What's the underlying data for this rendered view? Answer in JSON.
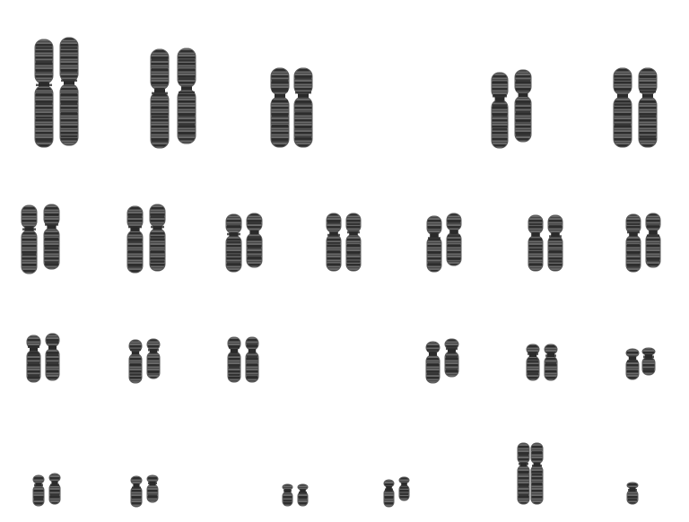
{
  "image": {
    "background": "#ffffff",
    "chromatin_dark": "#2a2a2a",
    "chromatin_mid": "#5a5a5a",
    "chromatin_light": "#9a9a9a"
  },
  "karyotype": {
    "rows": [
      {
        "row": 1,
        "pairs": 5
      },
      {
        "row": 2,
        "pairs": 7
      },
      {
        "row": 3,
        "pairs": 6
      },
      {
        "row": 4,
        "pairs": 6
      }
    ]
  }
}
